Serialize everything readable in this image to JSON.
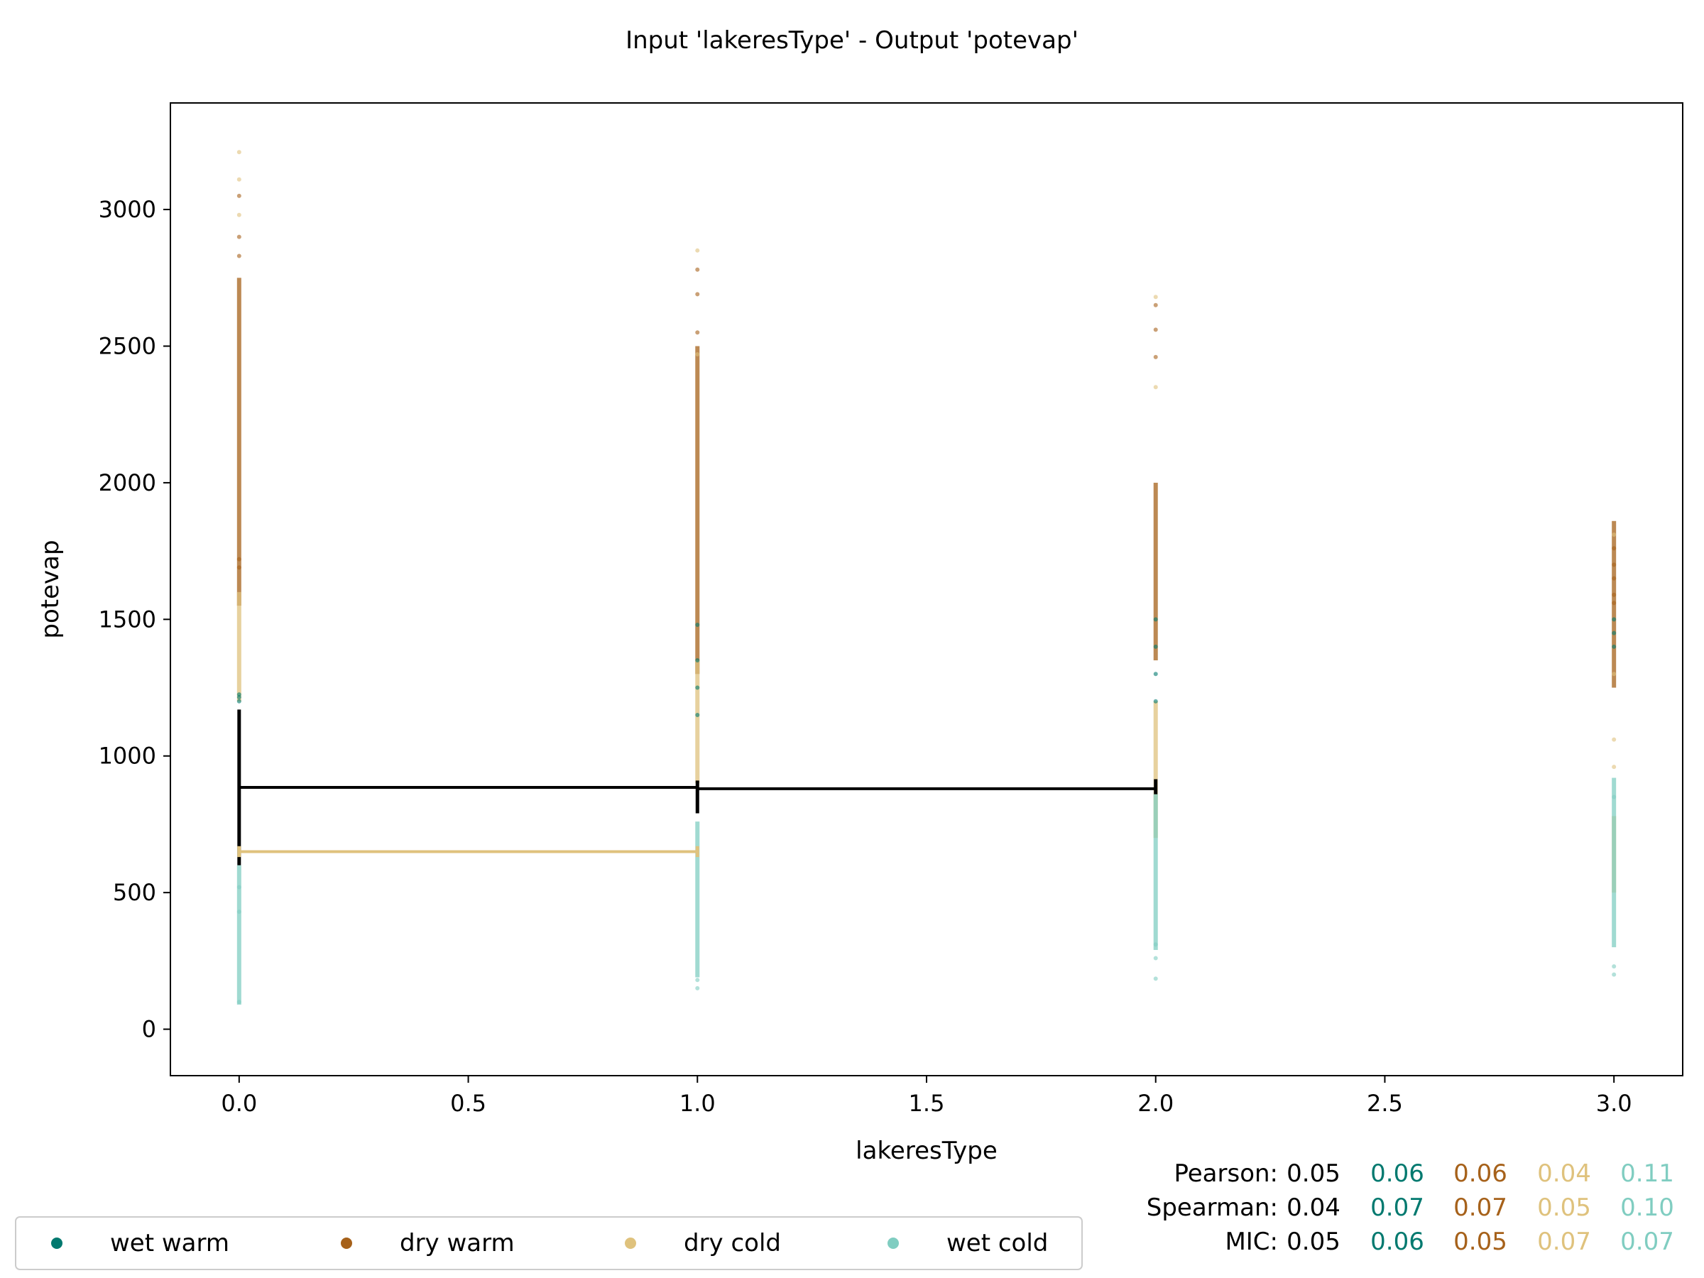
{
  "chart_data": {
    "type": "scatter",
    "title": "Input 'lakeresType' - Output 'potevap'",
    "xlabel": "lakeresType",
    "ylabel": "potevap",
    "xlim": [
      -0.15,
      3.15
    ],
    "ylim": [
      -170,
      3390
    ],
    "xticks": [
      "0.0",
      "0.5",
      "1.0",
      "1.5",
      "2.0",
      "2.5",
      "3.0"
    ],
    "xtick_values": [
      0,
      0.5,
      1,
      1.5,
      2,
      2.5,
      3
    ],
    "yticks": [
      "0",
      "500",
      "1000",
      "1500",
      "2000",
      "2500",
      "3000"
    ],
    "ytick_values": [
      0,
      500,
      1000,
      1500,
      2000,
      2500,
      3000
    ],
    "grid": false,
    "legend_position": "bottom-left",
    "series": [
      {
        "name": "wet warm",
        "color": "#01796f",
        "points": [
          [
            0,
            1200
          ],
          [
            0,
            1215
          ],
          [
            0,
            1225
          ],
          [
            1,
            1480
          ],
          [
            1,
            1350
          ],
          [
            1,
            1250
          ],
          [
            1,
            1150
          ],
          [
            2,
            1500
          ],
          [
            2,
            1400
          ],
          [
            2,
            1300
          ],
          [
            2,
            1200
          ],
          [
            3,
            1500
          ],
          [
            3,
            1450
          ],
          [
            3,
            1400
          ]
        ]
      },
      {
        "name": "dry warm",
        "color": "#a6611a",
        "range_strips": [
          [
            0,
            1550,
            2750
          ],
          [
            1,
            1300,
            2500
          ],
          [
            2,
            1350,
            2000
          ],
          [
            3,
            1250,
            1860
          ]
        ],
        "points": [
          [
            0,
            3050
          ],
          [
            0,
            2900
          ],
          [
            0,
            2830
          ],
          [
            0,
            1720
          ],
          [
            0,
            1690
          ],
          [
            1,
            2780
          ],
          [
            1,
            2690
          ],
          [
            1,
            2550
          ],
          [
            2,
            2650
          ],
          [
            2,
            2560
          ],
          [
            2,
            2460
          ],
          [
            3,
            1760
          ],
          [
            3,
            1700
          ],
          [
            3,
            1650
          ],
          [
            3,
            1590
          ],
          [
            3,
            1560
          ]
        ]
      },
      {
        "name": "dry cold",
        "color": "#dfc27d",
        "range_strips": [
          [
            0,
            1200,
            1600
          ],
          [
            1,
            900,
            1350
          ],
          [
            2,
            700,
            1200
          ],
          [
            3,
            500,
            780
          ]
        ],
        "points": [
          [
            0,
            3210
          ],
          [
            0,
            3110
          ],
          [
            0,
            2980
          ],
          [
            1,
            2850
          ],
          [
            1,
            2470
          ],
          [
            2,
            2680
          ],
          [
            2,
            2350
          ],
          [
            3,
            1810
          ],
          [
            3,
            1300
          ],
          [
            3,
            1060
          ],
          [
            3,
            960
          ]
        ]
      },
      {
        "name": "wet cold",
        "color": "#80cdc1",
        "range_strips": [
          [
            0,
            90,
            600
          ],
          [
            1,
            190,
            760
          ],
          [
            2,
            290,
            860
          ],
          [
            3,
            300,
            920
          ]
        ],
        "points": [
          [
            0,
            100
          ],
          [
            0,
            430
          ],
          [
            0,
            520
          ],
          [
            1,
            150
          ],
          [
            1,
            180
          ],
          [
            2,
            185
          ],
          [
            2,
            260
          ],
          [
            2,
            310
          ],
          [
            3,
            200
          ],
          [
            3,
            230
          ],
          [
            3,
            850
          ]
        ]
      }
    ],
    "step_lines": [
      {
        "color": "#000000",
        "x": [
          0,
          1,
          2
        ],
        "y": [
          885,
          880,
          880
        ],
        "markers": [
          [
            0,
            600,
            1170
          ],
          [
            1,
            790,
            910
          ],
          [
            2,
            860,
            915
          ]
        ]
      },
      {
        "color": "#dfc27d",
        "x": [
          0,
          1
        ],
        "y": [
          650,
          650
        ],
        "markers": [
          [
            0,
            630,
            670
          ],
          [
            1,
            630,
            670
          ]
        ]
      }
    ],
    "stats": {
      "rows": [
        {
          "label": "Pearson:",
          "values": [
            "0.05",
            "0.06",
            "0.06",
            "0.04",
            "0.11"
          ]
        },
        {
          "label": "Spearman:",
          "values": [
            "0.04",
            "0.07",
            "0.07",
            "0.05",
            "0.10"
          ]
        },
        {
          "label": "MIC:",
          "values": [
            "0.05",
            "0.06",
            "0.05",
            "0.07",
            "0.07"
          ]
        }
      ],
      "colors": [
        "#000000",
        "#01796f",
        "#a6611a",
        "#dfc27d",
        "#80cdc1"
      ]
    }
  }
}
